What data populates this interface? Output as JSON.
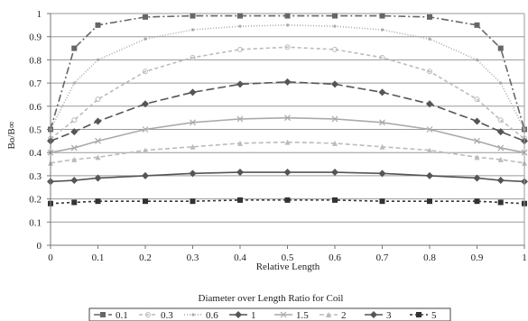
{
  "chart_data": {
    "type": "line",
    "ylabel": "Bo/B∞",
    "xlabel": "Relative Length",
    "legend_title": "Diameter over Length Ratio for Coil",
    "legend_position": "bottom",
    "grid": "horizontal",
    "xlim": [
      0,
      1
    ],
    "ylim": [
      0,
      1
    ],
    "x_ticks": [
      "0",
      "0.1",
      "0.2",
      "0.3",
      "0.4",
      "0.5",
      "0.6",
      "0.7",
      "0.8",
      "0.9",
      "1"
    ],
    "y_ticks": [
      "0",
      "0.1",
      "0.2",
      "0.3",
      "0.4",
      "0.5",
      "0.6",
      "0.7",
      "0.8",
      "0.9",
      "1"
    ],
    "x": [
      0,
      0.05,
      0.1,
      0.2,
      0.3,
      0.4,
      0.5,
      0.6,
      0.7,
      0.8,
      0.9,
      0.95,
      1
    ],
    "series": [
      {
        "name": "0.1",
        "color": "#666666",
        "dash": "8,3,2,3",
        "marker": "square",
        "values": [
          0.5,
          0.85,
          0.95,
          0.985,
          0.99,
          0.99,
          0.99,
          0.99,
          0.99,
          0.985,
          0.95,
          0.85,
          0.5
        ]
      },
      {
        "name": "0.3",
        "color": "#bbbbbb",
        "dash": "4,3",
        "marker": "circle",
        "values": [
          0.46,
          0.54,
          0.63,
          0.75,
          0.81,
          0.845,
          0.855,
          0.845,
          0.81,
          0.75,
          0.63,
          0.54,
          0.46
        ]
      },
      {
        "name": "0.6",
        "color": "#aaaaaa",
        "dash": "1,2",
        "marker": "dot",
        "values": [
          0.5,
          0.7,
          0.8,
          0.89,
          0.93,
          0.945,
          0.95,
          0.945,
          0.93,
          0.89,
          0.8,
          0.7,
          0.5
        ]
      },
      {
        "name": "1",
        "color": "#555555",
        "dash": "9,4",
        "marker": "diamond",
        "values": [
          0.45,
          0.49,
          0.535,
          0.61,
          0.66,
          0.695,
          0.705,
          0.695,
          0.66,
          0.61,
          0.535,
          0.49,
          0.45
        ]
      },
      {
        "name": "1.5",
        "color": "#aaaaaa",
        "dash": "",
        "marker": "cross",
        "values": [
          0.4,
          0.42,
          0.45,
          0.5,
          0.53,
          0.545,
          0.55,
          0.545,
          0.53,
          0.5,
          0.45,
          0.42,
          0.4
        ]
      },
      {
        "name": "2",
        "color": "#bbbbbb",
        "dash": "5,3",
        "marker": "triangle",
        "values": [
          0.355,
          0.37,
          0.38,
          0.41,
          0.425,
          0.44,
          0.445,
          0.44,
          0.425,
          0.41,
          0.38,
          0.37,
          0.355
        ]
      },
      {
        "name": "3",
        "color": "#555555",
        "dash": "",
        "marker": "diamond",
        "values": [
          0.275,
          0.28,
          0.29,
          0.3,
          0.31,
          0.315,
          0.315,
          0.315,
          0.31,
          0.3,
          0.29,
          0.28,
          0.275
        ]
      },
      {
        "name": "5",
        "color": "#333333",
        "dash": "3,3",
        "marker": "square",
        "values": [
          0.18,
          0.185,
          0.19,
          0.19,
          0.19,
          0.195,
          0.195,
          0.195,
          0.19,
          0.19,
          0.19,
          0.185,
          0.18
        ]
      }
    ]
  }
}
